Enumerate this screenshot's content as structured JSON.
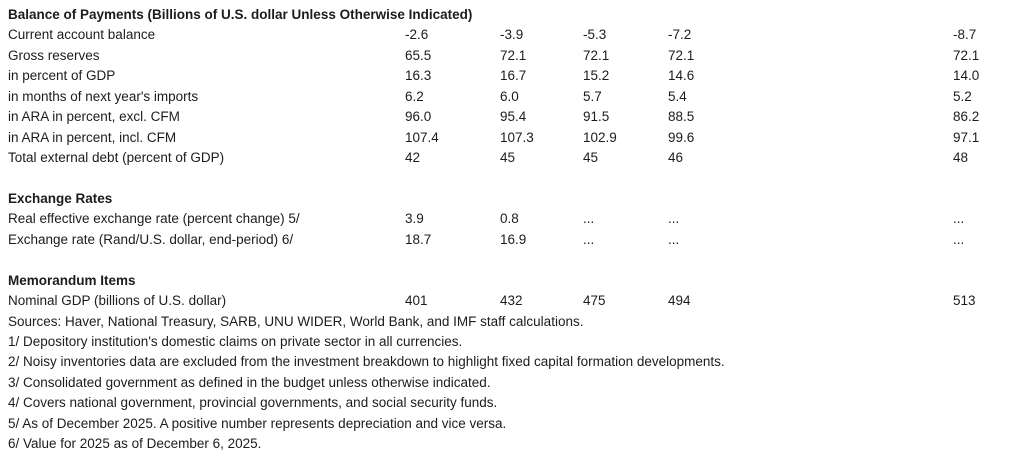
{
  "page": {
    "background_color": "#ffffff",
    "text_color": "#1c1c1c"
  },
  "table": {
    "title": "Balance of Payments (Billions of U.S. dollar Unless Otherwise Indicated)",
    "column_count": 5,
    "rows": [
      {
        "kind": "data",
        "label": "Current account balance",
        "values": [
          "-2.6",
          "-3.9",
          "-5.3",
          "-7.2",
          "-8.7"
        ]
      },
      {
        "kind": "data",
        "label": "Gross reserves",
        "values": [
          "65.5",
          "72.1",
          "72.1",
          "72.1",
          "72.1"
        ]
      },
      {
        "kind": "data",
        "label": "in percent of GDP",
        "values": [
          "16.3",
          "16.7",
          "15.2",
          "14.6",
          "14.0"
        ]
      },
      {
        "kind": "data",
        "label": "in months of next year's imports",
        "values": [
          "6.2",
          "6.0",
          "5.7",
          "5.4",
          "5.2"
        ]
      },
      {
        "kind": "data",
        "label": "in ARA in percent, excl. CFM",
        "values": [
          "96.0",
          "95.4",
          "91.5",
          "88.5",
          "86.2"
        ]
      },
      {
        "kind": "data",
        "label": "in ARA in percent, incl. CFM",
        "values": [
          "107.4",
          "107.3",
          "102.9",
          "99.6",
          "97.1"
        ]
      },
      {
        "kind": "data",
        "label": "Total external debt (percent of GDP)",
        "values": [
          "42",
          "45",
          "45",
          "46",
          "48"
        ]
      },
      {
        "kind": "blank"
      },
      {
        "kind": "section",
        "label": "Exchange Rates"
      },
      {
        "kind": "data",
        "label": "Real effective exchange rate (percent change) 5/",
        "values": [
          "3.9",
          "0.8",
          "...",
          "...",
          "..."
        ]
      },
      {
        "kind": "data",
        "label": "Exchange rate (Rand/U.S. dollar, end-period) 6/",
        "values": [
          "18.7",
          "16.9",
          "...",
          "...",
          "..."
        ]
      },
      {
        "kind": "blank"
      },
      {
        "kind": "section",
        "label": "Memorandum Items"
      },
      {
        "kind": "data",
        "label": "Nominal GDP (billions of U.S. dollar)",
        "values": [
          "401",
          "432",
          "475",
          "494",
          "513"
        ]
      }
    ],
    "footnotes": [
      "Sources: Haver, National Treasury, SARB, UNU WIDER, World Bank, and IMF staff calculations.",
      "1/ Depository institution's domestic claims on private sector in all currencies.",
      "2/ Noisy inventories data are excluded from the investment breakdown to highlight fixed capital formation developments.",
      "3/ Consolidated government as defined in the budget unless otherwise indicated.",
      "4/ Covers national government, provincial governments, and social security funds.",
      "5/ As of December 2025. A positive number represents depreciation and vice versa.",
      "6/ Value for 2025 as of December 6, 2025."
    ]
  }
}
